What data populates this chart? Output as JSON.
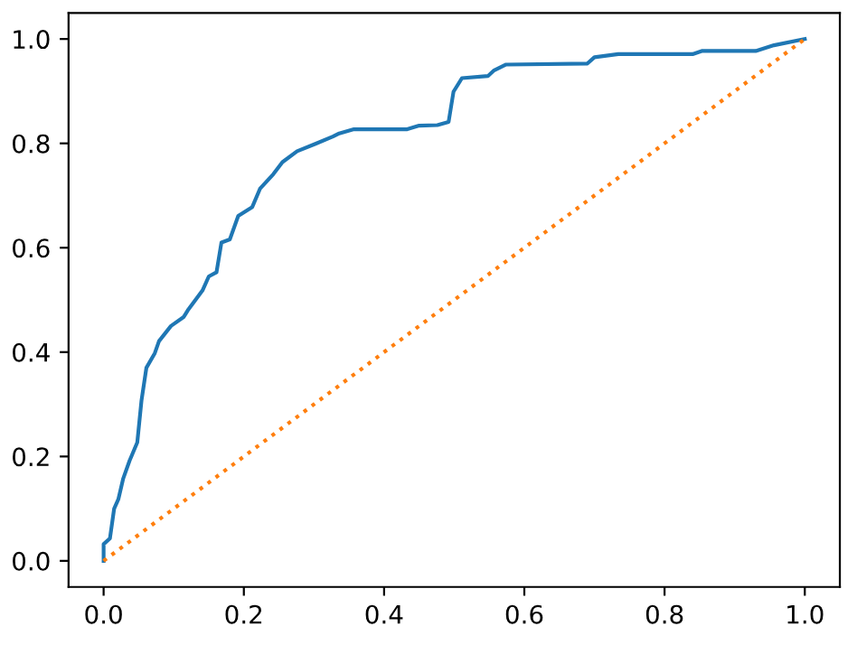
{
  "chart_data": {
    "type": "line",
    "xlim": [
      -0.05,
      1.05
    ],
    "ylim": [
      -0.05,
      1.05
    ],
    "xticks": [
      {
        "value": 0,
        "label": "0.0"
      },
      0.2,
      0.4,
      0.6,
      0.8,
      {
        "value": 1,
        "label": "1.0"
      }
    ],
    "yticks": [
      {
        "value": 0,
        "label": "0.0"
      },
      0.2,
      0.4,
      0.6,
      0.8,
      {
        "value": 1,
        "label": "1.0"
      }
    ],
    "grid": false,
    "legend": false,
    "marker": "none",
    "series": [
      {
        "color": "#1f77b4",
        "line_style": "solid",
        "x": [
          0,
          0,
          0.009,
          0.015,
          0.021,
          0.028,
          0.037,
          0.048,
          0.054,
          0.061,
          0.073,
          0.079,
          0.096,
          0.114,
          0.12,
          0.131,
          0.141,
          0.15,
          0.161,
          0.168,
          0.18,
          0.192,
          0.212,
          0.223,
          0.242,
          0.255,
          0.276,
          0.302,
          0.327,
          0.336,
          0.357,
          0.433,
          0.45,
          0.476,
          0.492,
          0.499,
          0.511,
          0.548,
          0.557,
          0.574,
          0.69,
          0.7,
          0.734,
          0.84,
          0.853,
          0.93,
          0.956,
          1.0
        ],
        "values": [
          0,
          0.032,
          0.043,
          0.1,
          0.118,
          0.158,
          0.192,
          0.227,
          0.307,
          0.37,
          0.398,
          0.421,
          0.45,
          0.467,
          0.48,
          0.5,
          0.518,
          0.545,
          0.553,
          0.61,
          0.616,
          0.661,
          0.678,
          0.713,
          0.741,
          0.764,
          0.785,
          0.799,
          0.813,
          0.819,
          0.827,
          0.827,
          0.834,
          0.835,
          0.841,
          0.899,
          0.925,
          0.929,
          0.94,
          0.951,
          0.953,
          0.965,
          0.971,
          0.971,
          0.977,
          0.977,
          0.988,
          1.0
        ]
      },
      {
        "color": "#ff7f0e",
        "line_style": "dotted",
        "x": [
          0,
          1
        ],
        "values": [
          0,
          1
        ]
      }
    ]
  }
}
